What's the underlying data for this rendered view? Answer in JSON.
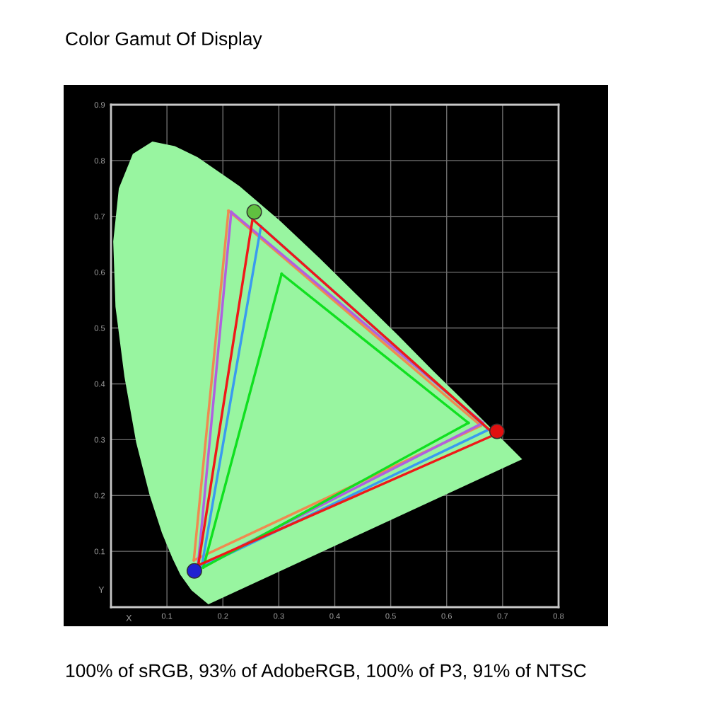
{
  "chart_data": {
    "type": "line",
    "title": "Color Gamut Of Display",
    "xlabel": "X",
    "ylabel": "Y",
    "xlim": [
      0,
      0.8
    ],
    "ylim": [
      0,
      0.9
    ],
    "xticks": [
      0.1,
      0.2,
      0.3,
      0.4,
      0.5,
      0.6,
      0.7,
      0.8
    ],
    "yticks": [
      0.1,
      0.2,
      0.3,
      0.4,
      0.5,
      0.6,
      0.7,
      0.8,
      0.9
    ],
    "grid": true,
    "line_style": "solid",
    "series": [
      {
        "type": "area",
        "color": "#98f5a0",
        "x": [
          0.174,
          0.144,
          0.124,
          0.11,
          0.091,
          0.069,
          0.045,
          0.024,
          0.008,
          0.004,
          0.014,
          0.039,
          0.074,
          0.114,
          0.155,
          0.23,
          0.302,
          0.373,
          0.444,
          0.513,
          0.575,
          0.627,
          0.735
        ],
        "values": [
          0.005,
          0.03,
          0.058,
          0.087,
          0.133,
          0.201,
          0.295,
          0.413,
          0.538,
          0.655,
          0.75,
          0.812,
          0.834,
          0.826,
          0.806,
          0.754,
          0.692,
          0.625,
          0.555,
          0.487,
          0.424,
          0.373,
          0.265
        ]
      },
      {
        "color": "#f08a50",
        "x": [
          0.148,
          0.21
        ],
        "values": [
          0.084,
          0.71
        ]
      },
      {
        "color": "#f08a50",
        "x": [
          0.21,
          0.661
        ],
        "values": [
          0.71,
          0.325
        ]
      },
      {
        "color": "#f08a50",
        "x": [
          0.148,
          0.661
        ],
        "values": [
          0.084,
          0.325
        ]
      },
      {
        "color": "#b060e0",
        "x": [
          0.155,
          0.215
        ],
        "values": [
          0.07,
          0.708
        ]
      },
      {
        "color": "#b060e0",
        "x": [
          0.215,
          0.665
        ],
        "values": [
          0.708,
          0.33
        ]
      },
      {
        "color": "#b060e0",
        "x": [
          0.155,
          0.665
        ],
        "values": [
          0.07,
          0.33
        ]
      },
      {
        "color": "#3a9af0",
        "x": [
          0.162,
          0.268
        ],
        "values": [
          0.072,
          0.682
        ]
      },
      {
        "color": "#3a9af0",
        "x": [
          0.268,
          0.675
        ],
        "values": [
          0.682,
          0.318
        ]
      },
      {
        "color": "#3a9af0",
        "x": [
          0.162,
          0.675
        ],
        "values": [
          0.072,
          0.318
        ]
      },
      {
        "color": "#10e020",
        "x": [
          0.165,
          0.305
        ],
        "values": [
          0.071,
          0.597
        ]
      },
      {
        "color": "#10e020",
        "x": [
          0.305,
          0.639
        ],
        "values": [
          0.597,
          0.33
        ]
      },
      {
        "color": "#10e020",
        "x": [
          0.165,
          0.639
        ],
        "values": [
          0.071,
          0.33
        ]
      },
      {
        "color": "#f01818",
        "x": [
          0.156,
          0.253
        ],
        "values": [
          0.075,
          0.695
        ]
      },
      {
        "color": "#f01818",
        "x": [
          0.253,
          0.686
        ],
        "values": [
          0.695,
          0.309
        ]
      },
      {
        "color": "#f01818",
        "x": [
          0.156,
          0.686
        ],
        "values": [
          0.075,
          0.309
        ]
      },
      {
        "type": "scatter",
        "marker": "circle",
        "colors": [
          "#e01010",
          "#60c040",
          "#2020d0"
        ],
        "x": [
          0.69,
          0.256,
          0.149
        ],
        "values": [
          0.315,
          0.708,
          0.065
        ]
      }
    ],
    "annotations": [
      "100% of sRGB, 93% of AdobeRGB, 100% of P3, 91% of NTSC"
    ]
  }
}
